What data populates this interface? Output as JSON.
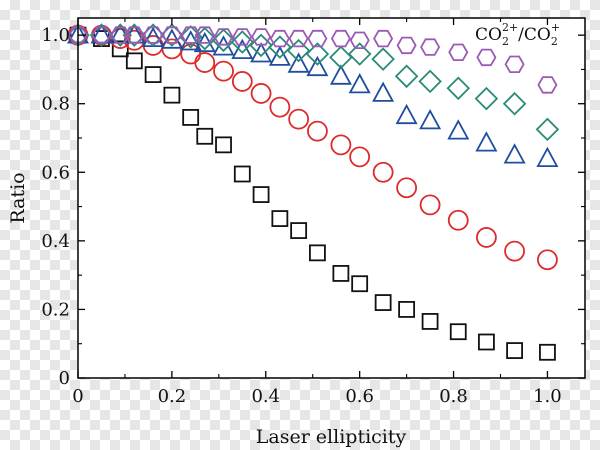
{
  "chart_data": {
    "type": "scatter",
    "title": "CO2 2+/CO2 +",
    "title_parts": {
      "base1": "CO",
      "sub1": "2",
      "sup1": "2+",
      "sep": "/",
      "base2": "CO",
      "sub2": "2",
      "sup2": "+"
    },
    "xlabel": "Laser ellipticity",
    "ylabel": "Ratio",
    "xlim": [
      0,
      1.08
    ],
    "ylim": [
      0,
      1.05
    ],
    "xticks": [
      0,
      0.2,
      0.4,
      0.6,
      0.8,
      1.0
    ],
    "yticks": [
      0,
      0.2,
      0.4,
      0.6,
      0.8,
      1.0
    ],
    "xtick_labels": [
      "0",
      "0.2",
      "0.4",
      "0.6",
      "0.8",
      "1.0"
    ],
    "ytick_labels": [
      "0",
      "0.2",
      "0.4",
      "0.6",
      "0.8",
      "1.0"
    ],
    "series": [
      {
        "name": "squares",
        "marker": "square",
        "color": "#111111",
        "x": [
          0,
          0.05,
          0.09,
          0.12,
          0.16,
          0.2,
          0.24,
          0.27,
          0.31,
          0.35,
          0.39,
          0.43,
          0.47,
          0.51,
          0.56,
          0.6,
          0.65,
          0.7,
          0.75,
          0.81,
          0.87,
          0.93,
          1.0
        ],
        "y": [
          1.0,
          0.99,
          0.96,
          0.925,
          0.885,
          0.825,
          0.76,
          0.705,
          0.68,
          0.595,
          0.535,
          0.465,
          0.43,
          0.365,
          0.305,
          0.275,
          0.22,
          0.2,
          0.165,
          0.135,
          0.105,
          0.08,
          0.075
        ]
      },
      {
        "name": "circles",
        "marker": "circle",
        "color": "#dd2a2a",
        "x": [
          0,
          0.05,
          0.09,
          0.12,
          0.16,
          0.2,
          0.24,
          0.27,
          0.31,
          0.35,
          0.39,
          0.43,
          0.47,
          0.51,
          0.56,
          0.6,
          0.65,
          0.7,
          0.75,
          0.81,
          0.87,
          0.93,
          1.0
        ],
        "y": [
          1.0,
          1.0,
          0.99,
          0.985,
          0.97,
          0.96,
          0.945,
          0.92,
          0.895,
          0.865,
          0.83,
          0.79,
          0.755,
          0.72,
          0.68,
          0.645,
          0.6,
          0.555,
          0.505,
          0.46,
          0.41,
          0.37,
          0.345
        ]
      },
      {
        "name": "triangles",
        "marker": "triangle",
        "color": "#1f4e9e",
        "x": [
          0,
          0.05,
          0.09,
          0.12,
          0.16,
          0.2,
          0.24,
          0.27,
          0.31,
          0.35,
          0.39,
          0.43,
          0.47,
          0.51,
          0.56,
          0.6,
          0.65,
          0.7,
          0.75,
          0.81,
          0.87,
          0.93,
          1.0
        ],
        "y": [
          1.0,
          1.0,
          1.0,
          1.0,
          0.99,
          0.985,
          0.98,
          0.975,
          0.965,
          0.955,
          0.945,
          0.935,
          0.915,
          0.905,
          0.88,
          0.855,
          0.83,
          0.765,
          0.75,
          0.72,
          0.685,
          0.65,
          0.64
        ]
      },
      {
        "name": "diamonds",
        "marker": "diamond",
        "color": "#2a8a78",
        "x": [
          0,
          0.05,
          0.09,
          0.12,
          0.16,
          0.2,
          0.24,
          0.27,
          0.31,
          0.35,
          0.39,
          0.43,
          0.47,
          0.51,
          0.56,
          0.6,
          0.65,
          0.7,
          0.75,
          0.81,
          0.87,
          0.93,
          1.0
        ],
        "y": [
          1.0,
          1.0,
          1.0,
          1.0,
          1.0,
          1.0,
          0.995,
          0.99,
          0.985,
          0.98,
          0.97,
          0.965,
          0.955,
          0.945,
          0.935,
          0.945,
          0.93,
          0.88,
          0.865,
          0.845,
          0.815,
          0.8,
          0.725
        ]
      },
      {
        "name": "hexagons",
        "marker": "hexagon",
        "color": "#9b59b6",
        "x": [
          0,
          0.05,
          0.09,
          0.12,
          0.16,
          0.2,
          0.24,
          0.27,
          0.31,
          0.35,
          0.39,
          0.43,
          0.47,
          0.51,
          0.56,
          0.6,
          0.65,
          0.7,
          0.75,
          0.81,
          0.87,
          0.93,
          1.0
        ],
        "y": [
          1.0,
          1.0,
          1.0,
          1.0,
          1.0,
          1.0,
          1.0,
          1.0,
          0.995,
          0.995,
          0.995,
          0.99,
          0.99,
          0.99,
          0.99,
          0.985,
          0.99,
          0.97,
          0.965,
          0.95,
          0.935,
          0.915,
          0.855
        ]
      }
    ]
  }
}
